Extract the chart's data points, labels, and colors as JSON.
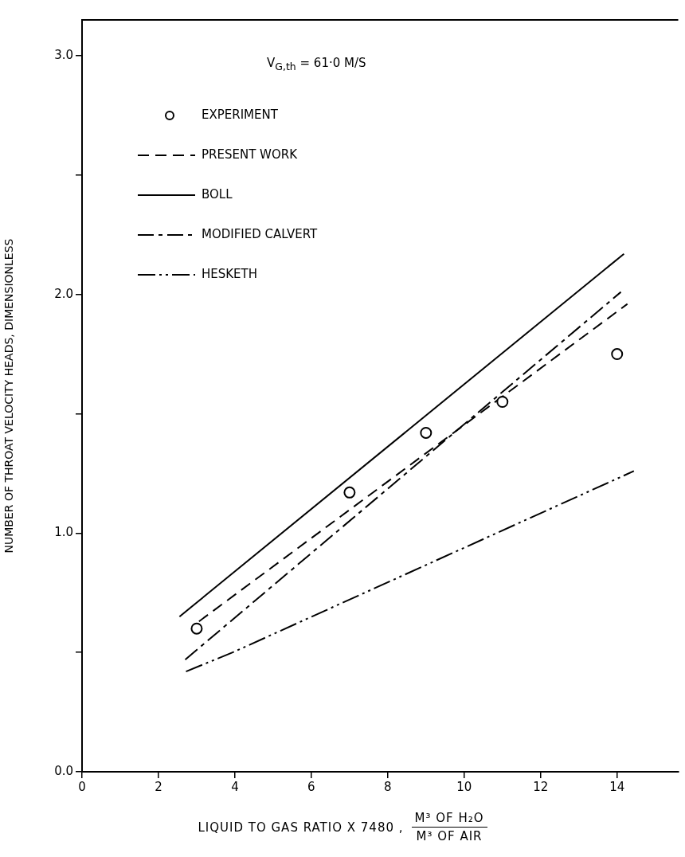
{
  "chart_data": {
    "type": "line",
    "xlabel": "LIQUID TO GAS RATIO X 7480 , M³ OF H₂O\nM³ OF AIR",
    "ylabel": "NUMBER OF THROAT VELOCITY HEADS, DIMENSIONLESS",
    "annotations": [
      "V$_{G,th}$ = 61·0 M/S"
    ],
    "xlim": [
      0,
      15.6
    ],
    "xticks": [
      0,
      2,
      4,
      6,
      8,
      10,
      12,
      14
    ],
    "ylim": [
      0,
      3.15
    ],
    "yticks": [
      {
        "value": 0,
        "label": "0.0"
      },
      {
        "value": 0.5,
        "label": null
      },
      {
        "value": 1,
        "label": "1.0"
      },
      {
        "value": 1.5,
        "label": null
      },
      {
        "value": 2,
        "label": "2.0"
      },
      {
        "value": 2.5,
        "label": null
      },
      {
        "value": 3,
        "label": "3.0"
      }
    ],
    "grid": false,
    "legend": "top left",
    "series": [
      {
        "name": "EXPERIMENT",
        "type": "scatter",
        "marker": "circle",
        "color": "#000000",
        "x": [
          3,
          7,
          9,
          11,
          14
        ],
        "values": [
          0.6,
          1.17,
          1.42,
          1.55,
          1.75
        ]
      },
      {
        "name": "PRESENT WORK",
        "type": "line",
        "line_style": "dashed",
        "marker": "none",
        "color": "#000000",
        "x": [
          3.06,
          14.27
        ],
        "values": [
          0.63,
          1.96
        ]
      },
      {
        "name": "BOLL",
        "type": "line",
        "line_style": "solid",
        "marker": "none",
        "color": "#000000",
        "x": [
          2.55,
          14.18
        ],
        "values": [
          0.65,
          2.17
        ]
      },
      {
        "name": "MODIFIED CALVERT",
        "type": "line",
        "line_style": "dashdot",
        "marker": "none",
        "color": "#000000",
        "x": [
          2.7,
          14.1
        ],
        "values": [
          0.47,
          2.01
        ]
      },
      {
        "name": "HESKETH",
        "type": "line",
        "line_style": "dashdotdot",
        "marker": "none",
        "color": "#000000",
        "x": [
          2.72,
          3.94,
          14.44
        ],
        "values": [
          0.42,
          0.5,
          1.26
        ]
      }
    ]
  }
}
